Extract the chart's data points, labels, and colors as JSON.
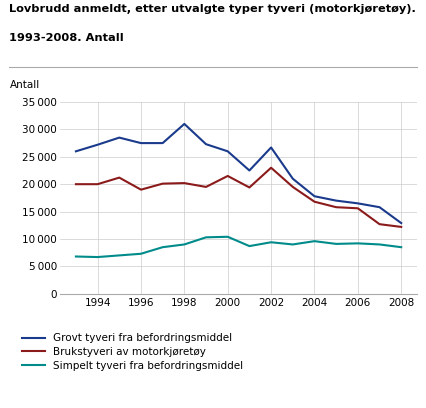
{
  "title_line1": "Lovbrudd anmeldt, etter utvalgte typer tyveri (motorkjøretøy).",
  "title_line2": "1993-2008. Antall",
  "ylabel": "Antall",
  "years": [
    1993,
    1994,
    1995,
    1996,
    1997,
    1998,
    1999,
    2000,
    2001,
    2002,
    2003,
    2004,
    2005,
    2006,
    2007,
    2008
  ],
  "grovt": [
    26000,
    27200,
    28500,
    27500,
    27500,
    31000,
    27300,
    26000,
    22500,
    26700,
    21000,
    17800,
    17000,
    16500,
    15800,
    12900
  ],
  "bruks": [
    20000,
    20000,
    21200,
    19000,
    20100,
    20200,
    19500,
    21500,
    19400,
    23000,
    19500,
    16800,
    15800,
    15600,
    12700,
    12200
  ],
  "simpelt": [
    6800,
    6700,
    7000,
    7300,
    8500,
    9000,
    10300,
    10400,
    8700,
    9400,
    9000,
    9600,
    9100,
    9200,
    9000,
    8500
  ],
  "color_grovt": "#1a3a8c",
  "color_bruks": "#8b1a1a",
  "color_simpelt": "#008b8b",
  "ylim": [
    0,
    35000
  ],
  "yticks": [
    0,
    5000,
    10000,
    15000,
    20000,
    25000,
    30000,
    35000
  ],
  "xticks": [
    1994,
    1996,
    1998,
    2000,
    2002,
    2004,
    2006,
    2008
  ],
  "legend_labels": [
    "Grovt tyveri fra befordringsmiddel",
    "Brukstyveri av motorkjøretøy",
    "Simpelt tyveri fra befordringsmiddel"
  ],
  "bg_color": "#ffffff",
  "grid_color": "#cccccc",
  "linewidth": 1.5
}
